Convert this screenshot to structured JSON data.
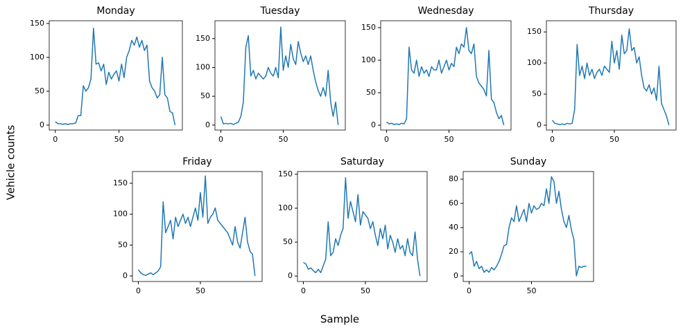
{
  "xlabel": "Sample",
  "ylabel": "Vehicle counts",
  "chart_data": [
    {
      "type": "line",
      "title": "Monday",
      "color": "#1f77b4",
      "xlim": [
        -4.75,
        99.75
      ],
      "xticks": [
        0,
        50
      ],
      "ylim": [
        -7.3,
        154
      ],
      "yticks": [
        0,
        50,
        100,
        150
      ],
      "x": [
        0,
        2,
        4,
        6,
        8,
        10,
        12,
        14,
        16,
        18,
        20,
        22,
        24,
        26,
        28,
        30,
        32,
        34,
        36,
        38,
        40,
        42,
        44,
        46,
        48,
        50,
        52,
        54,
        56,
        58,
        60,
        62,
        64,
        66,
        68,
        70,
        72,
        74,
        76,
        78,
        80,
        82,
        84,
        86,
        88,
        90,
        92,
        94
      ],
      "values": [
        5,
        2,
        2,
        1,
        2,
        1,
        2,
        2,
        3,
        14,
        14,
        58,
        50,
        55,
        68,
        143,
        90,
        92,
        80,
        90,
        60,
        78,
        68,
        75,
        80,
        65,
        90,
        70,
        100,
        110,
        125,
        118,
        130,
        115,
        125,
        110,
        118,
        65,
        55,
        50,
        40,
        45,
        100,
        45,
        40,
        20,
        18,
        0
      ]
    },
    {
      "type": "line",
      "title": "Tuesday",
      "color": "#1f77b4",
      "xlim": [
        -4.75,
        99.75
      ],
      "xticks": [
        0,
        50
      ],
      "ylim": [
        -8.6,
        181
      ],
      "yticks": [
        0,
        50,
        100,
        150
      ],
      "x": [
        0,
        2,
        4,
        6,
        8,
        10,
        12,
        14,
        16,
        18,
        20,
        22,
        24,
        26,
        28,
        30,
        32,
        34,
        36,
        38,
        40,
        42,
        44,
        46,
        48,
        50,
        52,
        54,
        56,
        58,
        60,
        62,
        64,
        66,
        68,
        70,
        72,
        74,
        76,
        78,
        80,
        82,
        84,
        86,
        88,
        90,
        92,
        94
      ],
      "values": [
        15,
        2,
        3,
        2,
        3,
        1,
        3,
        5,
        15,
        40,
        135,
        155,
        85,
        95,
        80,
        90,
        85,
        80,
        85,
        100,
        90,
        85,
        100,
        82,
        170,
        95,
        120,
        100,
        140,
        115,
        105,
        145,
        125,
        110,
        120,
        105,
        120,
        95,
        75,
        60,
        50,
        65,
        50,
        95,
        40,
        15,
        40,
        0
      ]
    },
    {
      "type": "line",
      "title": "Wednesday",
      "color": "#1f77b4",
      "xlim": [
        -4.75,
        99.75
      ],
      "xticks": [
        0,
        50
      ],
      "ylim": [
        -7.4,
        160.6
      ],
      "yticks": [
        0,
        50,
        100,
        150
      ],
      "x": [
        0,
        2,
        4,
        6,
        8,
        10,
        12,
        14,
        16,
        18,
        20,
        22,
        24,
        26,
        28,
        30,
        32,
        34,
        36,
        38,
        40,
        42,
        44,
        46,
        48,
        50,
        52,
        54,
        56,
        58,
        60,
        62,
        64,
        66,
        68,
        70,
        72,
        74,
        76,
        78,
        80,
        82,
        84,
        86,
        88,
        90,
        92,
        94
      ],
      "values": [
        5,
        2,
        3,
        1,
        2,
        1,
        3,
        2,
        10,
        120,
        85,
        80,
        100,
        75,
        90,
        80,
        85,
        75,
        90,
        85,
        85,
        100,
        80,
        90,
        100,
        85,
        95,
        90,
        120,
        110,
        125,
        120,
        150,
        115,
        110,
        125,
        75,
        65,
        60,
        55,
        45,
        115,
        40,
        35,
        20,
        10,
        15,
        0
      ]
    },
    {
      "type": "line",
      "title": "Thursday",
      "color": "#1f77b4",
      "xlim": [
        -4.75,
        99.75
      ],
      "xticks": [
        0,
        50
      ],
      "ylim": [
        -7.8,
        168
      ],
      "yticks": [
        0,
        50,
        100,
        150
      ],
      "x": [
        0,
        2,
        4,
        6,
        8,
        10,
        12,
        14,
        16,
        18,
        20,
        22,
        24,
        26,
        28,
        30,
        32,
        34,
        36,
        38,
        40,
        42,
        44,
        46,
        48,
        50,
        52,
        54,
        56,
        58,
        60,
        62,
        64,
        66,
        68,
        70,
        72,
        74,
        76,
        78,
        80,
        82,
        84,
        86,
        88,
        90,
        92,
        94
      ],
      "values": [
        8,
        3,
        2,
        1,
        2,
        1,
        3,
        2,
        3,
        25,
        130,
        80,
        95,
        75,
        100,
        80,
        90,
        75,
        85,
        90,
        80,
        95,
        90,
        85,
        135,
        100,
        120,
        90,
        145,
        115,
        120,
        155,
        120,
        125,
        100,
        110,
        80,
        60,
        55,
        65,
        50,
        60,
        40,
        95,
        35,
        25,
        15,
        0
      ]
    },
    {
      "type": "line",
      "title": "Friday",
      "color": "#1f77b4",
      "xlim": [
        -4.75,
        99.75
      ],
      "xticks": [
        0,
        50
      ],
      "ylim": [
        -9,
        169
      ],
      "yticks": [
        0,
        50,
        100,
        150
      ],
      "x": [
        0,
        2,
        4,
        6,
        8,
        10,
        12,
        14,
        16,
        18,
        20,
        22,
        24,
        26,
        28,
        30,
        32,
        34,
        36,
        38,
        40,
        42,
        44,
        46,
        48,
        50,
        52,
        54,
        56,
        58,
        60,
        62,
        64,
        66,
        68,
        70,
        72,
        74,
        76,
        78,
        80,
        82,
        84,
        86,
        88,
        90,
        92,
        94
      ],
      "values": [
        10,
        5,
        2,
        1,
        3,
        5,
        2,
        5,
        8,
        15,
        120,
        70,
        80,
        90,
        60,
        95,
        80,
        90,
        100,
        85,
        95,
        80,
        95,
        110,
        90,
        135,
        95,
        162,
        85,
        95,
        100,
        110,
        90,
        85,
        80,
        75,
        70,
        60,
        50,
        80,
        55,
        45,
        70,
        95,
        55,
        40,
        35,
        0
      ]
    },
    {
      "type": "line",
      "title": "Saturday",
      "color": "#1f77b4",
      "xlim": [
        -4.75,
        99.75
      ],
      "xticks": [
        0,
        50
      ],
      "ylim": [
        -8,
        154
      ],
      "yticks": [
        0,
        50,
        100,
        150
      ],
      "x": [
        0,
        2,
        4,
        6,
        8,
        10,
        12,
        14,
        16,
        18,
        20,
        22,
        24,
        26,
        28,
        30,
        32,
        34,
        36,
        38,
        40,
        42,
        44,
        46,
        48,
        50,
        52,
        54,
        56,
        58,
        60,
        62,
        64,
        66,
        68,
        70,
        72,
        74,
        76,
        78,
        80,
        82,
        84,
        86,
        88,
        90,
        92,
        94
      ],
      "values": [
        20,
        18,
        10,
        12,
        8,
        5,
        10,
        5,
        15,
        25,
        80,
        30,
        35,
        55,
        45,
        60,
        70,
        145,
        85,
        110,
        95,
        80,
        120,
        75,
        95,
        90,
        85,
        70,
        80,
        60,
        45,
        70,
        55,
        75,
        40,
        60,
        50,
        35,
        55,
        40,
        45,
        30,
        55,
        35,
        30,
        65,
        25,
        0
      ]
    },
    {
      "type": "line",
      "title": "Sunday",
      "color": "#1f77b4",
      "xlim": [
        -4.75,
        99.75
      ],
      "xticks": [
        0,
        50
      ],
      "ylim": [
        -4.6,
        86.3
      ],
      "yticks": [
        0,
        20,
        40,
        60,
        80
      ],
      "x": [
        0,
        2,
        4,
        6,
        8,
        10,
        12,
        14,
        16,
        18,
        20,
        22,
        24,
        26,
        28,
        30,
        32,
        34,
        36,
        38,
        40,
        42,
        44,
        46,
        48,
        50,
        52,
        54,
        56,
        58,
        60,
        62,
        64,
        66,
        68,
        70,
        72,
        74,
        76,
        78,
        80,
        82,
        84,
        86,
        88,
        90,
        92,
        94
      ],
      "values": [
        18,
        20,
        8,
        12,
        6,
        8,
        3,
        5,
        3,
        7,
        5,
        8,
        12,
        18,
        25,
        26,
        40,
        48,
        45,
        58,
        45,
        50,
        55,
        45,
        60,
        52,
        58,
        55,
        56,
        60,
        58,
        72,
        60,
        82,
        78,
        60,
        70,
        55,
        45,
        40,
        50,
        38,
        30,
        0,
        8,
        7,
        8,
        8
      ]
    }
  ]
}
